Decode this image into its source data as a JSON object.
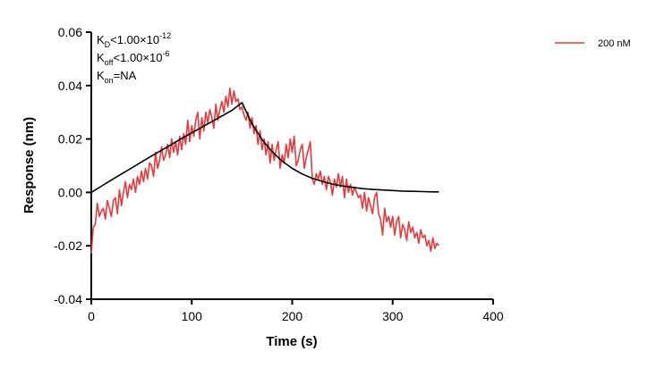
{
  "chart_data": {
    "type": "line",
    "title": "",
    "xlabel": "Time (s)",
    "ylabel": "Response (nm)",
    "xlim": [
      0,
      400
    ],
    "ylim": [
      -0.04,
      0.06
    ],
    "x_ticks": [
      0,
      100,
      200,
      300,
      400
    ],
    "x_tick_labels": [
      "0",
      "100",
      "200",
      "300",
      "400"
    ],
    "y_ticks": [
      -0.04,
      -0.02,
      0.0,
      0.02,
      0.04,
      0.06
    ],
    "y_tick_labels": [
      "-0.04",
      "-0.02",
      "0.00",
      "0.02",
      "0.04",
      "0.06"
    ],
    "grid": false,
    "legend_position": "top-right",
    "annotations": {
      "kd": {
        "main": "K",
        "sub": "D",
        "text": "<1.00×10",
        "sup": "-12"
      },
      "koff": {
        "main": "K",
        "sub": "off",
        "text": "<1.00×10",
        "sup": "-6"
      },
      "kon": {
        "main": "K",
        "sub": "on",
        "text": "=NA"
      }
    },
    "series": [
      {
        "name": "200 nM",
        "color": "#e8393c",
        "x": [
          0,
          2,
          4,
          6,
          8,
          10,
          12,
          14,
          16,
          18,
          20,
          22,
          24,
          26,
          28,
          30,
          32,
          34,
          36,
          38,
          40,
          42,
          44,
          46,
          48,
          50,
          52,
          54,
          56,
          58,
          60,
          62,
          64,
          66,
          68,
          70,
          72,
          74,
          76,
          78,
          80,
          82,
          84,
          86,
          88,
          90,
          92,
          94,
          96,
          98,
          100,
          102,
          104,
          106,
          108,
          110,
          112,
          114,
          116,
          118,
          120,
          122,
          124,
          126,
          128,
          130,
          132,
          134,
          136,
          138,
          140,
          142,
          144,
          146,
          148,
          150,
          152,
          154,
          156,
          158,
          160,
          162,
          164,
          166,
          168,
          170,
          172,
          174,
          176,
          178,
          180,
          182,
          184,
          186,
          188,
          190,
          192,
          194,
          196,
          198,
          200,
          202,
          204,
          206,
          208,
          210,
          212,
          214,
          216,
          218,
          220,
          222,
          224,
          226,
          228,
          230,
          232,
          234,
          236,
          238,
          240,
          242,
          244,
          246,
          248,
          250,
          252,
          254,
          256,
          258,
          260,
          262,
          264,
          266,
          268,
          270,
          272,
          274,
          276,
          278,
          280,
          282,
          284,
          286,
          288,
          290,
          292,
          294,
          296,
          298,
          300,
          302,
          304,
          306,
          308,
          310,
          312,
          314,
          316,
          318,
          320,
          322,
          324,
          326,
          328,
          330,
          332,
          334,
          336,
          338,
          340,
          342,
          344,
          346
        ],
        "y": [
          -0.023,
          -0.013,
          -0.012,
          -0.004,
          -0.009,
          -0.007,
          -0.006,
          -0.01,
          -0.003,
          -0.006,
          -0.009,
          -0.003,
          -0.002,
          -0.008,
          0.001,
          -0.005,
          0.0,
          0.004,
          -0.002,
          0.003,
          0.001,
          0.005,
          0.0,
          0.006,
          0.003,
          0.008,
          0.004,
          0.009,
          0.005,
          0.011,
          0.01,
          0.006,
          0.015,
          0.009,
          0.012,
          0.017,
          0.012,
          0.014,
          0.018,
          0.013,
          0.02,
          0.015,
          0.019,
          0.014,
          0.021,
          0.016,
          0.022,
          0.018,
          0.027,
          0.019,
          0.025,
          0.021,
          0.027,
          0.03,
          0.02,
          0.028,
          0.023,
          0.03,
          0.026,
          0.031,
          0.028,
          0.024,
          0.033,
          0.027,
          0.031,
          0.034,
          0.03,
          0.036,
          0.032,
          0.039,
          0.033,
          0.038,
          0.034,
          0.035,
          0.031,
          0.032,
          0.029,
          0.027,
          0.03,
          0.024,
          0.028,
          0.022,
          0.025,
          0.018,
          0.023,
          0.016,
          0.02,
          0.014,
          0.019,
          0.011,
          0.018,
          0.012,
          0.016,
          0.019,
          0.009,
          0.014,
          0.011,
          0.018,
          0.013,
          0.02,
          0.015,
          0.021,
          0.01,
          0.012,
          0.016,
          0.018,
          0.009,
          0.013,
          0.016,
          0.019,
          0.005,
          0.003,
          0.007,
          0.005,
          0.008,
          0.003,
          0.006,
          0.001,
          0.006,
          0.004,
          -0.001,
          0.005,
          0.002,
          0.007,
          0.002,
          0.006,
          -0.002,
          0.005,
          0.0,
          0.003,
          -0.001,
          0.002,
          0.0,
          -0.002,
          -0.001,
          -0.006,
          0.0,
          -0.007,
          -0.002,
          -0.005,
          -0.008,
          -0.002,
          0.0,
          -0.008,
          -0.01,
          -0.016,
          -0.006,
          -0.011,
          -0.009,
          -0.013,
          -0.009,
          -0.016,
          -0.011,
          -0.009,
          -0.017,
          -0.012,
          -0.014,
          -0.018,
          -0.011,
          -0.015,
          -0.013,
          -0.017,
          -0.015,
          -0.019,
          -0.014,
          -0.017,
          -0.016,
          -0.02,
          -0.018,
          -0.022,
          -0.017,
          -0.021,
          -0.019,
          -0.02
        ]
      },
      {
        "name": "",
        "color": "#000000",
        "x": [
          0,
          10,
          20,
          30,
          40,
          50,
          60,
          70,
          80,
          90,
          100,
          110,
          120,
          130,
          140,
          150,
          160,
          170,
          180,
          190,
          200,
          210,
          220,
          230,
          240,
          250,
          260,
          270,
          280,
          290,
          300,
          310,
          320,
          330,
          340,
          346
        ],
        "y": [
          0.0,
          0.0023,
          0.0046,
          0.0069,
          0.0091,
          0.0114,
          0.0136,
          0.0158,
          0.018,
          0.0202,
          0.0223,
          0.0244,
          0.0265,
          0.0286,
          0.0307,
          0.0336,
          0.0257,
          0.0198,
          0.0152,
          0.0117,
          0.009,
          0.0069,
          0.0053,
          0.0041,
          0.0031,
          0.0024,
          0.0019,
          0.0014,
          0.0011,
          0.0009,
          0.0007,
          0.0005,
          0.0004,
          0.0003,
          0.0002,
          0.0002
        ]
      }
    ]
  }
}
